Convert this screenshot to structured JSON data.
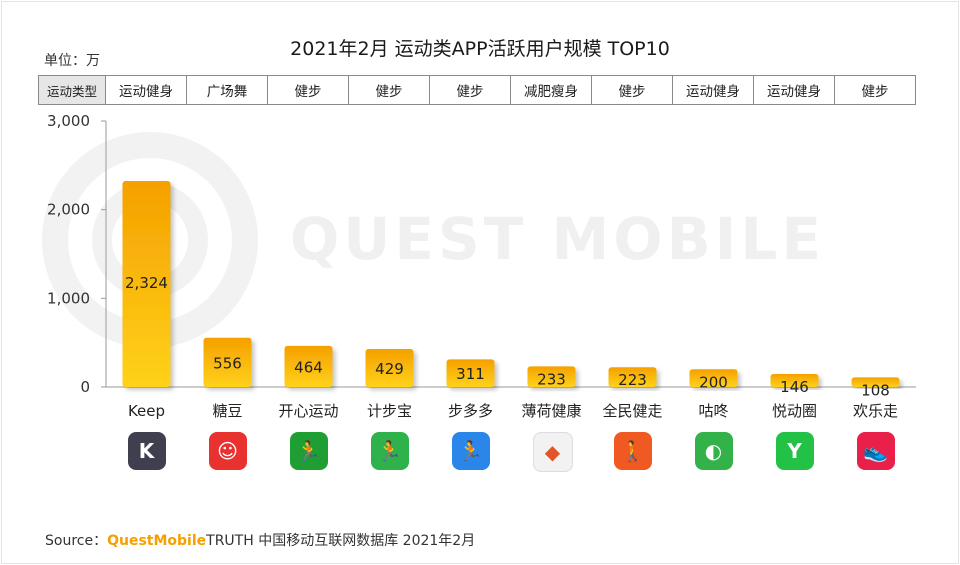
{
  "title": "2021年2月 运动类APP活跃用户规模 TOP10",
  "unit_label": "单位：万",
  "type_row": {
    "header": "运动类型",
    "types": [
      "运动健身",
      "广场舞",
      "健步",
      "健步",
      "健步",
      "减肥瘦身",
      "健步",
      "运动健身",
      "运动健身",
      "健步"
    ]
  },
  "watermark": "QUEST MOBILE",
  "chart_data": {
    "type": "bar",
    "title": "2021年2月 运动类APP活跃用户规模 TOP10",
    "categories": [
      "Keep",
      "糖豆",
      "开心运动",
      "计步宝",
      "步多多",
      "薄荷健康",
      "全民健走",
      "咕咚",
      "悦动圈",
      "欢乐走"
    ],
    "values": [
      2324,
      556,
      464,
      429,
      311,
      233,
      223,
      200,
      146,
      108
    ],
    "value_labels": [
      "2,324",
      "556",
      "464",
      "429",
      "311",
      "233",
      "223",
      "200",
      "146",
      "108"
    ],
    "ylim": [
      0,
      3000
    ],
    "yticks": [
      0,
      1000,
      2000,
      3000
    ],
    "ytick_labels": [
      "0",
      "1,000",
      "2,000",
      "3,000"
    ],
    "ylabel": "万",
    "xlabel": "",
    "bar_color_top": "#f5a000",
    "bar_color_bottom": "#ffd21a"
  },
  "app_icons": [
    {
      "name": "keep-icon",
      "color": "#3f3f4f",
      "glyph": "K"
    },
    {
      "name": "tangdou-icon",
      "color": "#e8322f",
      "glyph": "☺"
    },
    {
      "name": "kaixin-icon",
      "color": "#1f9e33",
      "glyph": "🏃"
    },
    {
      "name": "jibubao-icon",
      "color": "#2fb24c",
      "glyph": "🏃"
    },
    {
      "name": "buduoduo-icon",
      "color": "#2a86e8",
      "glyph": "🏃"
    },
    {
      "name": "bohe-icon",
      "color": "#f2f2f2",
      "glyph": "◆"
    },
    {
      "name": "quanmin-icon",
      "color": "#f05a22",
      "glyph": "🚶"
    },
    {
      "name": "gudong-icon",
      "color": "#33b24a",
      "glyph": "◐"
    },
    {
      "name": "yuedong-icon",
      "color": "#23c247",
      "glyph": "Y"
    },
    {
      "name": "huanle-icon",
      "color": "#e8204a",
      "glyph": "👟"
    }
  ],
  "source": {
    "prefix": "Source：",
    "brand": "QuestMobile",
    "rest": "TRUTH 中国移动互联网数据库 2021年2月"
  }
}
